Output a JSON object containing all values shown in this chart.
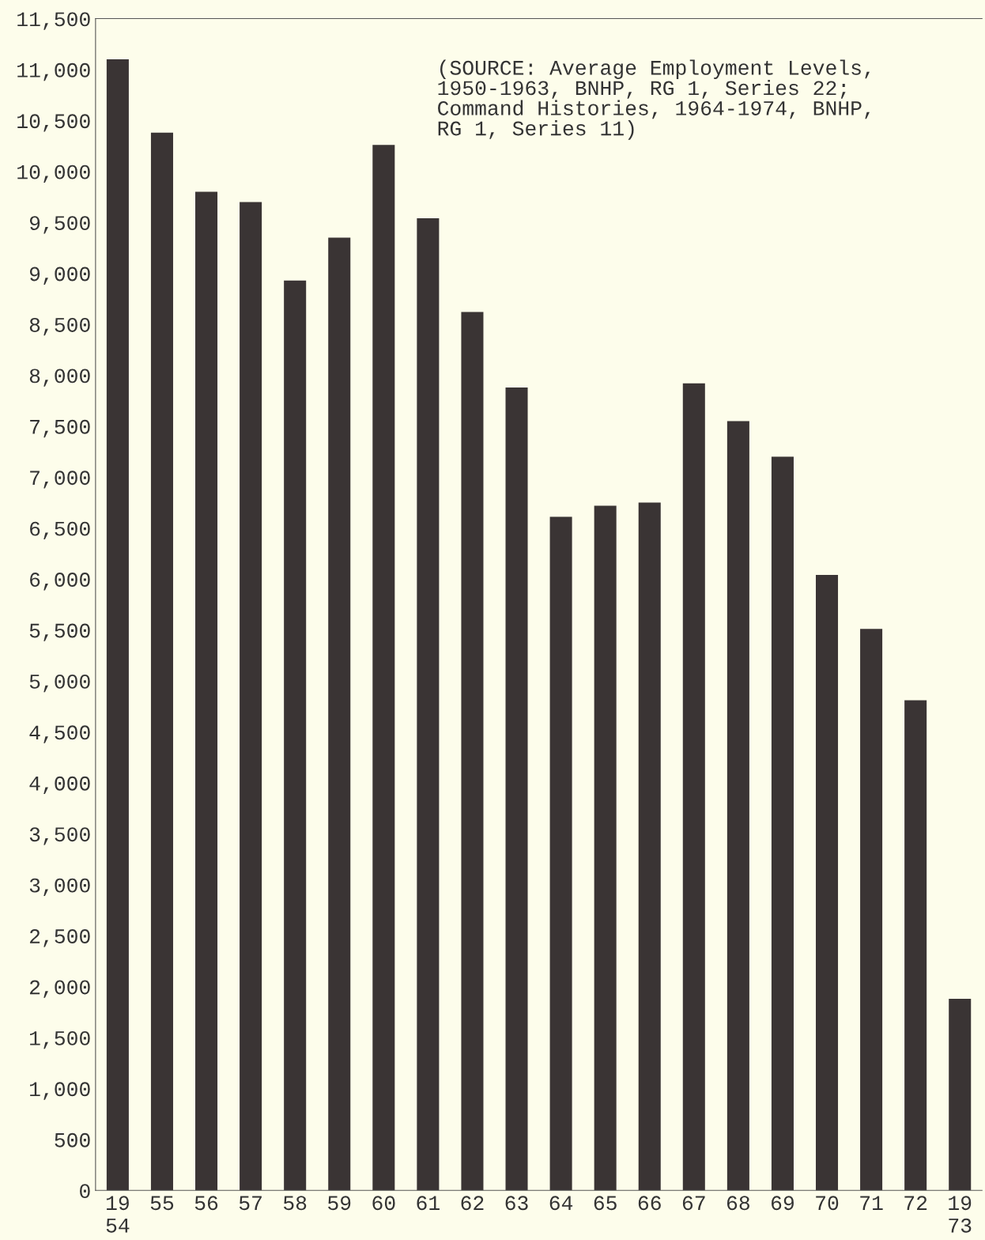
{
  "chart_data": {
    "type": "bar",
    "categories": [
      "19\n54",
      "55",
      "56",
      "57",
      "58",
      "59",
      "60",
      "61",
      "62",
      "63",
      "64",
      "65",
      "66",
      "67",
      "68",
      "69",
      "70",
      "71",
      "72",
      "19\n73"
    ],
    "values": [
      11100,
      10380,
      9800,
      9700,
      8930,
      9350,
      10260,
      9540,
      8620,
      7880,
      6610,
      6720,
      6750,
      7920,
      7550,
      7200,
      6040,
      5510,
      4810,
      1880
    ],
    "color": "#3a3434",
    "ylim": [
      0,
      11500
    ],
    "yticks": [
      {
        "value": 0,
        "label": "0"
      },
      {
        "value": 500,
        "label": "500"
      },
      {
        "value": 1000,
        "label": "1,000"
      },
      {
        "value": 1500,
        "label": "1,500"
      },
      {
        "value": 2000,
        "label": "2,000"
      },
      {
        "value": 2500,
        "label": "2,500"
      },
      {
        "value": 3000,
        "label": "3,000"
      },
      {
        "value": 3500,
        "label": "3,500"
      },
      {
        "value": 4000,
        "label": "4,000"
      },
      {
        "value": 4500,
        "label": "4,500"
      },
      {
        "value": 5000,
        "label": "5,000"
      },
      {
        "value": 5500,
        "label": "5,500"
      },
      {
        "value": 6000,
        "label": "6,000"
      },
      {
        "value": 6500,
        "label": "6,500"
      },
      {
        "value": 7000,
        "label": "7,000"
      },
      {
        "value": 7500,
        "label": "7,500"
      },
      {
        "value": 8000,
        "label": "8,000"
      },
      {
        "value": 8500,
        "label": "8,500"
      },
      {
        "value": 9000,
        "label": "9,000"
      },
      {
        "value": 9500,
        "label": "9,500"
      },
      {
        "value": 10000,
        "label": "10,000"
      },
      {
        "value": 10500,
        "label": "10,500"
      },
      {
        "value": 11000,
        "label": "11,000"
      },
      {
        "value": 11500,
        "label": "11,500"
      }
    ],
    "grid": false,
    "annotations": [
      "(SOURCE: Average Employment Levels,\n1950-1963, BNHP, RG 1, Series 22;\nCommand Histories, 1964-1974, BNHP,\nRG 1, Series 11)"
    ]
  }
}
